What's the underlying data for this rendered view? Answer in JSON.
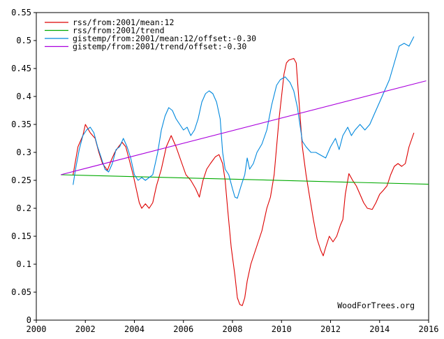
{
  "chart_data": {
    "type": "line",
    "title": "",
    "xlabel": "",
    "ylabel": "",
    "xlim": [
      2000,
      2016
    ],
    "ylim": [
      0,
      0.55
    ],
    "grid": false,
    "legend_placement": "top-left",
    "x_ticks": [
      "2000",
      "2002",
      "2004",
      "2006",
      "2008",
      "2010",
      "2012",
      "2014",
      "2016"
    ],
    "y_ticks": [
      "0",
      "0.05",
      "0.1",
      "0.15",
      "0.2",
      "0.25",
      "0.3",
      "0.35",
      "0.4",
      "0.45",
      "0.5",
      "0.55"
    ],
    "credit": "WoodForTrees.org",
    "series": [
      {
        "name": "rss/from:2001/mean:12",
        "color": "#dd0000",
        "points": [
          [
            2001.5,
            0.26
          ],
          [
            2001.7,
            0.31
          ],
          [
            2001.9,
            0.33
          ],
          [
            2002.0,
            0.35
          ],
          [
            2002.2,
            0.335
          ],
          [
            2002.4,
            0.325
          ],
          [
            2002.55,
            0.3
          ],
          [
            2002.7,
            0.28
          ],
          [
            2002.9,
            0.268
          ],
          [
            2003.05,
            0.285
          ],
          [
            2003.2,
            0.3
          ],
          [
            2003.35,
            0.31
          ],
          [
            2003.5,
            0.318
          ],
          [
            2003.65,
            0.31
          ],
          [
            2003.8,
            0.285
          ],
          [
            2003.95,
            0.26
          ],
          [
            2004.1,
            0.23
          ],
          [
            2004.2,
            0.21
          ],
          [
            2004.3,
            0.2
          ],
          [
            2004.45,
            0.208
          ],
          [
            2004.6,
            0.2
          ],
          [
            2004.75,
            0.21
          ],
          [
            2004.9,
            0.24
          ],
          [
            2005.1,
            0.27
          ],
          [
            2005.3,
            0.31
          ],
          [
            2005.5,
            0.33
          ],
          [
            2005.7,
            0.31
          ],
          [
            2005.9,
            0.285
          ],
          [
            2006.1,
            0.26
          ],
          [
            2006.3,
            0.25
          ],
          [
            2006.5,
            0.235
          ],
          [
            2006.65,
            0.22
          ],
          [
            2006.8,
            0.25
          ],
          [
            2006.95,
            0.27
          ],
          [
            2007.1,
            0.28
          ],
          [
            2007.3,
            0.292
          ],
          [
            2007.45,
            0.296
          ],
          [
            2007.6,
            0.28
          ],
          [
            2007.7,
            0.25
          ],
          [
            2007.8,
            0.2
          ],
          [
            2007.95,
            0.13
          ],
          [
            2008.1,
            0.08
          ],
          [
            2008.2,
            0.04
          ],
          [
            2008.3,
            0.028
          ],
          [
            2008.4,
            0.026
          ],
          [
            2008.5,
            0.04
          ],
          [
            2008.6,
            0.07
          ],
          [
            2008.75,
            0.1
          ],
          [
            2008.9,
            0.12
          ],
          [
            2009.05,
            0.14
          ],
          [
            2009.2,
            0.16
          ],
          [
            2009.4,
            0.2
          ],
          [
            2009.55,
            0.22
          ],
          [
            2009.7,
            0.26
          ],
          [
            2009.8,
            0.31
          ],
          [
            2009.9,
            0.36
          ],
          [
            2010.0,
            0.4
          ],
          [
            2010.1,
            0.44
          ],
          [
            2010.2,
            0.46
          ],
          [
            2010.3,
            0.465
          ],
          [
            2010.5,
            0.468
          ],
          [
            2010.6,
            0.46
          ],
          [
            2010.7,
            0.4
          ],
          [
            2010.85,
            0.31
          ],
          [
            2011.0,
            0.26
          ],
          [
            2011.15,
            0.22
          ],
          [
            2011.3,
            0.18
          ],
          [
            2011.45,
            0.145
          ],
          [
            2011.6,
            0.125
          ],
          [
            2011.7,
            0.115
          ],
          [
            2011.8,
            0.13
          ],
          [
            2011.95,
            0.15
          ],
          [
            2012.1,
            0.14
          ],
          [
            2012.25,
            0.15
          ],
          [
            2012.4,
            0.17
          ],
          [
            2012.5,
            0.18
          ],
          [
            2012.6,
            0.225
          ],
          [
            2012.75,
            0.262
          ],
          [
            2012.9,
            0.25
          ],
          [
            2013.05,
            0.24
          ],
          [
            2013.2,
            0.225
          ],
          [
            2013.35,
            0.21
          ],
          [
            2013.5,
            0.2
          ],
          [
            2013.7,
            0.198
          ],
          [
            2013.85,
            0.21
          ],
          [
            2014.0,
            0.225
          ],
          [
            2014.15,
            0.232
          ],
          [
            2014.3,
            0.24
          ],
          [
            2014.45,
            0.26
          ],
          [
            2014.6,
            0.275
          ],
          [
            2014.75,
            0.28
          ],
          [
            2014.9,
            0.275
          ],
          [
            2015.05,
            0.28
          ],
          [
            2015.2,
            0.31
          ],
          [
            2015.4,
            0.335
          ]
        ]
      },
      {
        "name": "rss/from:2001/trend",
        "color": "#00aa00",
        "points": [
          [
            2001.0,
            0.26
          ],
          [
            2016.0,
            0.243
          ]
        ]
      },
      {
        "name": "gistemp/from:2001/mean:12/offset:-0.30",
        "color": "#0088dd",
        "points": [
          [
            2001.5,
            0.242
          ],
          [
            2001.6,
            0.27
          ],
          [
            2001.75,
            0.305
          ],
          [
            2001.9,
            0.33
          ],
          [
            2002.05,
            0.34
          ],
          [
            2002.2,
            0.345
          ],
          [
            2002.35,
            0.335
          ],
          [
            2002.5,
            0.31
          ],
          [
            2002.65,
            0.29
          ],
          [
            2002.8,
            0.27
          ],
          [
            2002.95,
            0.265
          ],
          [
            2003.1,
            0.28
          ],
          [
            2003.25,
            0.305
          ],
          [
            2003.4,
            0.31
          ],
          [
            2003.55,
            0.325
          ],
          [
            2003.7,
            0.31
          ],
          [
            2003.85,
            0.29
          ],
          [
            2004.0,
            0.26
          ],
          [
            2004.15,
            0.25
          ],
          [
            2004.3,
            0.255
          ],
          [
            2004.45,
            0.25
          ],
          [
            2004.6,
            0.255
          ],
          [
            2004.75,
            0.26
          ],
          [
            2004.85,
            0.28
          ],
          [
            2004.95,
            0.3
          ],
          [
            2005.1,
            0.34
          ],
          [
            2005.25,
            0.365
          ],
          [
            2005.4,
            0.38
          ],
          [
            2005.55,
            0.375
          ],
          [
            2005.7,
            0.36
          ],
          [
            2005.85,
            0.35
          ],
          [
            2006.0,
            0.34
          ],
          [
            2006.15,
            0.345
          ],
          [
            2006.3,
            0.33
          ],
          [
            2006.45,
            0.34
          ],
          [
            2006.6,
            0.36
          ],
          [
            2006.75,
            0.39
          ],
          [
            2006.9,
            0.405
          ],
          [
            2007.05,
            0.41
          ],
          [
            2007.2,
            0.405
          ],
          [
            2007.35,
            0.39
          ],
          [
            2007.5,
            0.36
          ],
          [
            2007.6,
            0.3
          ],
          [
            2007.7,
            0.27
          ],
          [
            2007.85,
            0.26
          ],
          [
            2008.0,
            0.235
          ],
          [
            2008.1,
            0.22
          ],
          [
            2008.2,
            0.218
          ],
          [
            2008.35,
            0.24
          ],
          [
            2008.5,
            0.26
          ],
          [
            2008.6,
            0.29
          ],
          [
            2008.7,
            0.27
          ],
          [
            2008.85,
            0.28
          ],
          [
            2009.0,
            0.3
          ],
          [
            2009.2,
            0.315
          ],
          [
            2009.4,
            0.34
          ],
          [
            2009.6,
            0.385
          ],
          [
            2009.8,
            0.42
          ],
          [
            2009.95,
            0.43
          ],
          [
            2010.15,
            0.435
          ],
          [
            2010.35,
            0.425
          ],
          [
            2010.5,
            0.41
          ],
          [
            2010.65,
            0.38
          ],
          [
            2010.75,
            0.35
          ],
          [
            2010.85,
            0.32
          ],
          [
            2011.0,
            0.31
          ],
          [
            2011.2,
            0.3
          ],
          [
            2011.4,
            0.3
          ],
          [
            2011.6,
            0.295
          ],
          [
            2011.8,
            0.29
          ],
          [
            2012.0,
            0.31
          ],
          [
            2012.2,
            0.325
          ],
          [
            2012.35,
            0.305
          ],
          [
            2012.5,
            0.33
          ],
          [
            2012.7,
            0.345
          ],
          [
            2012.85,
            0.33
          ],
          [
            2013.0,
            0.34
          ],
          [
            2013.2,
            0.35
          ],
          [
            2013.4,
            0.34
          ],
          [
            2013.6,
            0.35
          ],
          [
            2013.8,
            0.37
          ],
          [
            2014.0,
            0.39
          ],
          [
            2014.2,
            0.41
          ],
          [
            2014.4,
            0.43
          ],
          [
            2014.6,
            0.46
          ],
          [
            2014.8,
            0.49
          ],
          [
            2015.0,
            0.495
          ],
          [
            2015.2,
            0.49
          ],
          [
            2015.4,
            0.507
          ]
        ]
      },
      {
        "name": "gistemp/from:2001/trend/offset:-0.30",
        "color": "#aa00dd",
        "points": [
          [
            2001.0,
            0.26
          ],
          [
            2015.9,
            0.428
          ]
        ]
      }
    ]
  }
}
